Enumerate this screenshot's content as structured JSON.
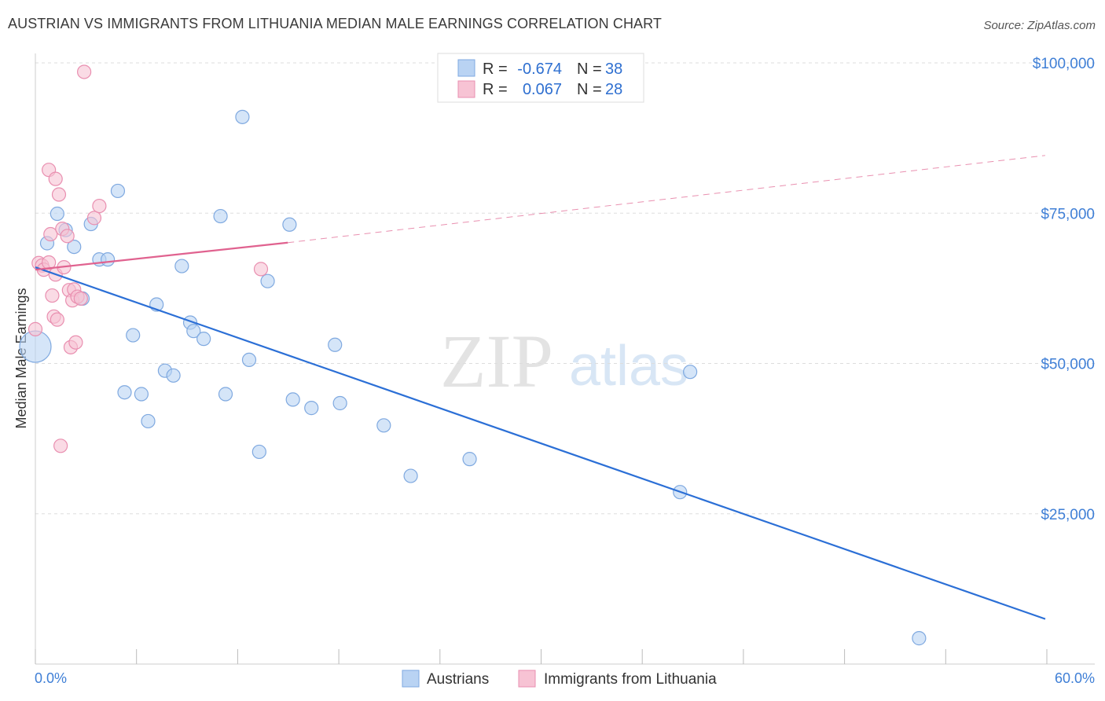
{
  "title": "AUSTRIAN VS IMMIGRANTS FROM LITHUANIA MEDIAN MALE EARNINGS CORRELATION CHART",
  "source": "Source: ZipAtlas.com",
  "watermark": {
    "zip": "ZIP",
    "atlas": "atlas"
  },
  "colors": {
    "blue_fill": "#b9d3f3",
    "blue_stroke": "#7fa9e0",
    "blue_line": "#2b6fd6",
    "pink_fill": "#f7c3d4",
    "pink_stroke": "#e98fb0",
    "pink_line": "#e0628f",
    "axis_text": "#3f7fd6",
    "grid": "#dddddd"
  },
  "legend": {
    "rows": [
      {
        "r_label": "R =",
        "r_value": "-0.674",
        "n_label": "N =",
        "n_value": "38"
      },
      {
        "r_label": "R =",
        "r_value": "0.067",
        "n_label": "N =",
        "n_value": "28"
      }
    ]
  },
  "bottom_legend": [
    "Austrians",
    "Immigrants from Lithuania"
  ],
  "chart_data": {
    "type": "scatter",
    "title": "AUSTRIAN VS IMMIGRANTS FROM LITHUANIA MEDIAN MALE EARNINGS CORRELATION CHART",
    "xlabel": "",
    "ylabel": "Median Male Earnings",
    "xlim": [
      0,
      60
    ],
    "ylim": [
      0,
      105000
    ],
    "x_tick_labels": [
      "0.0%",
      "60.0%"
    ],
    "y_ticks": [
      25000,
      50000,
      75000,
      100000
    ],
    "y_tick_labels": [
      "$25,000",
      "$50,000",
      "$75,000",
      "$100,000"
    ],
    "grid": true,
    "legend_position": "top-center",
    "series": [
      {
        "name": "Austrians",
        "color": "#b9d3f3",
        "points": [
          [
            0.0,
            52800,
            "large"
          ],
          [
            0.7,
            70000
          ],
          [
            1.3,
            74900
          ],
          [
            1.8,
            72200
          ],
          [
            2.3,
            69400
          ],
          [
            2.8,
            60800
          ],
          [
            3.3,
            73200
          ],
          [
            3.8,
            67300
          ],
          [
            4.3,
            67300
          ],
          [
            4.9,
            78700
          ],
          [
            5.3,
            45200
          ],
          [
            5.8,
            54700
          ],
          [
            6.3,
            44900
          ],
          [
            6.7,
            40400
          ],
          [
            7.2,
            59800
          ],
          [
            7.7,
            48800
          ],
          [
            8.2,
            48000
          ],
          [
            8.7,
            66200
          ],
          [
            9.2,
            56800
          ],
          [
            9.4,
            55400
          ],
          [
            10.0,
            54100
          ],
          [
            11.0,
            74500
          ],
          [
            11.3,
            44900
          ],
          [
            12.3,
            91000
          ],
          [
            12.7,
            50600
          ],
          [
            13.3,
            35300
          ],
          [
            13.8,
            63700
          ],
          [
            15.1,
            73100
          ],
          [
            15.3,
            44000
          ],
          [
            16.4,
            42600
          ],
          [
            17.8,
            53100
          ],
          [
            18.1,
            43400
          ],
          [
            20.7,
            39700
          ],
          [
            22.3,
            31300
          ],
          [
            25.8,
            34100
          ],
          [
            38.3,
            28600
          ],
          [
            38.9,
            48600
          ],
          [
            52.5,
            4300
          ]
        ],
        "trend": {
          "x": [
            0,
            60
          ],
          "y": [
            66000,
            7500
          ]
        }
      },
      {
        "name": "Immigrants from Lithuania",
        "color": "#f7c3d4",
        "points": [
          [
            0.0,
            55700
          ],
          [
            0.2,
            66700
          ],
          [
            0.4,
            66300
          ],
          [
            0.5,
            65600
          ],
          [
            0.8,
            82200
          ],
          [
            0.8,
            66800
          ],
          [
            0.9,
            71500
          ],
          [
            1.0,
            61300
          ],
          [
            1.1,
            57800
          ],
          [
            1.2,
            80700
          ],
          [
            1.2,
            64800
          ],
          [
            1.3,
            57300
          ],
          [
            1.4,
            78100
          ],
          [
            1.5,
            36300
          ],
          [
            1.6,
            72400
          ],
          [
            1.7,
            66000
          ],
          [
            1.9,
            71200
          ],
          [
            2.0,
            62200
          ],
          [
            2.1,
            52700
          ],
          [
            2.2,
            60500
          ],
          [
            2.3,
            62300
          ],
          [
            2.4,
            53500
          ],
          [
            2.5,
            61100
          ],
          [
            2.7,
            60800
          ],
          [
            2.9,
            98500
          ],
          [
            3.5,
            74200
          ],
          [
            3.8,
            76200
          ],
          [
            13.4,
            65700
          ]
        ],
        "trend": {
          "x": [
            0,
            15
          ],
          "y": [
            65600,
            70100
          ]
        },
        "trend_extension": {
          "x": [
            15,
            60
          ],
          "y": [
            70100,
            84600
          ]
        }
      }
    ]
  }
}
